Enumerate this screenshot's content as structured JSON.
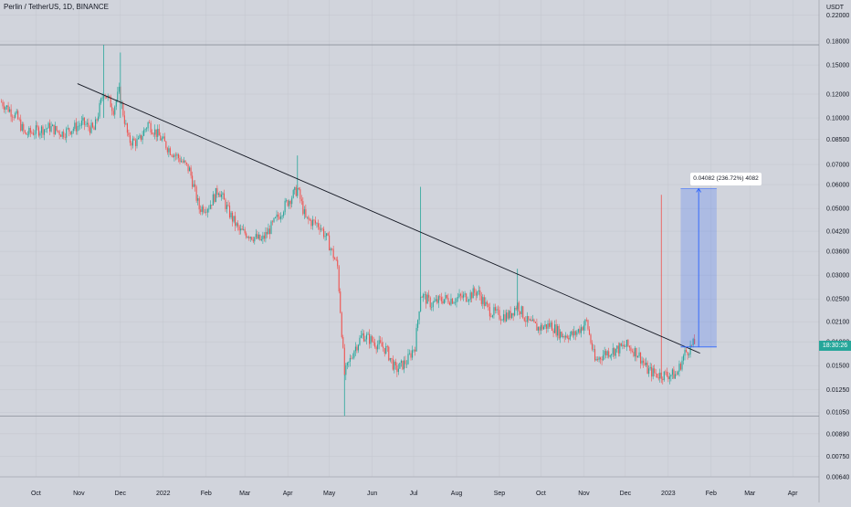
{
  "title": "Perlin / TetherUS, 1D, BINANCE",
  "currency": "USDT",
  "countdown": "18:30:26",
  "measure_label": "0.04082 (236.72%) 4082",
  "colors": {
    "up": "#26a69a",
    "down": "#ef5350",
    "trendline": "#131722",
    "measure_fill": "#2962ff",
    "measure_line": "#2962ff",
    "hline": "#8a8f9a"
  },
  "chart_data": {
    "type": "candlestick",
    "yscale": "log",
    "ylim": [
      0.0064,
      0.23
    ],
    "y_ticks": [
      "0.22000",
      "0.18000",
      "0.15000",
      "0.12000",
      "0.10000",
      "0.08500",
      "0.07000",
      "0.06000",
      "0.05000",
      "0.04200",
      "0.03600",
      "0.03000",
      "0.02500",
      "0.02100",
      "0.01800",
      "0.01500",
      "0.01250",
      "0.01050",
      "0.00890",
      "0.00750",
      "0.00640"
    ],
    "x_ticks": [
      "Oct",
      "Nov",
      "Dec",
      "2022",
      "Feb",
      "Mar",
      "Apr",
      "May",
      "Jun",
      "Jul",
      "Aug",
      "Sep",
      "Oct",
      "Nov",
      "Dec",
      "2023",
      "Feb",
      "Mar",
      "Apr"
    ],
    "xlim": [
      "2021-09-05",
      "2023-04-20"
    ],
    "trendline": {
      "from": [
        "2021-10-31",
        0.13
      ],
      "to": [
        "2023-01-24",
        0.0165
      ]
    },
    "horizontal_lines": [
      0.175,
      0.0102
    ],
    "measure": {
      "from_date": "2023-01-10",
      "to_date": "2023-02-05",
      "low": 0.0173,
      "high": 0.0582
    },
    "candles": [
      [
        "2021-09-06",
        0.113
      ],
      [
        "2021-09-17",
        0.101
      ],
      [
        "2021-09-23",
        0.088
      ],
      [
        "2021-10-02",
        0.091
      ],
      [
        "2021-10-11",
        0.093
      ],
      [
        "2021-10-20",
        0.089
      ],
      [
        "2021-10-29",
        0.093
      ],
      [
        "2021-11-04",
        0.096
      ],
      [
        "2021-11-12",
        0.091
      ],
      [
        "2021-11-19",
        0.123
      ],
      [
        "2021-11-26",
        0.107
      ],
      [
        "2021-11-30",
        0.122
      ],
      [
        "2021-12-07",
        0.084
      ],
      [
        "2021-12-14",
        0.083
      ],
      [
        "2021-12-21",
        0.096
      ],
      [
        "2021-12-28",
        0.088
      ],
      [
        "2022-01-05",
        0.079
      ],
      [
        "2022-01-13",
        0.073
      ],
      [
        "2022-01-20",
        0.067
      ],
      [
        "2022-01-27",
        0.05
      ],
      [
        "2022-02-03",
        0.051
      ],
      [
        "2022-02-10",
        0.058
      ],
      [
        "2022-02-17",
        0.049
      ],
      [
        "2022-02-25",
        0.042
      ],
      [
        "2022-03-04",
        0.041
      ],
      [
        "2022-03-13",
        0.039
      ],
      [
        "2022-03-21",
        0.044
      ],
      [
        "2022-03-31",
        0.052
      ],
      [
        "2022-04-08",
        0.058
      ],
      [
        "2022-04-14",
        0.046
      ],
      [
        "2022-04-24",
        0.044
      ],
      [
        "2022-04-30",
        0.039
      ],
      [
        "2022-05-07",
        0.032
      ],
      [
        "2022-05-12",
        0.014
      ],
      [
        "2022-05-19",
        0.017
      ],
      [
        "2022-05-25",
        0.019
      ],
      [
        "2022-06-02",
        0.018
      ],
      [
        "2022-06-11",
        0.017
      ],
      [
        "2022-06-18",
        0.0145
      ],
      [
        "2022-06-26",
        0.0155
      ],
      [
        "2022-07-02",
        0.0175
      ],
      [
        "2022-07-06",
        0.026
      ],
      [
        "2022-07-14",
        0.024
      ],
      [
        "2022-07-22",
        0.025
      ],
      [
        "2022-07-30",
        0.025
      ],
      [
        "2022-08-08",
        0.0255
      ],
      [
        "2022-08-16",
        0.0265
      ],
      [
        "2022-08-24",
        0.023
      ],
      [
        "2022-09-01",
        0.022
      ],
      [
        "2022-09-08",
        0.022
      ],
      [
        "2022-09-14",
        0.024
      ],
      [
        "2022-09-21",
        0.021
      ],
      [
        "2022-09-29",
        0.02
      ],
      [
        "2022-10-08",
        0.0205
      ],
      [
        "2022-10-16",
        0.019
      ],
      [
        "2022-10-25",
        0.019
      ],
      [
        "2022-11-03",
        0.021
      ],
      [
        "2022-11-09",
        0.0155
      ],
      [
        "2022-11-16",
        0.0165
      ],
      [
        "2022-11-25",
        0.017
      ],
      [
        "2022-12-02",
        0.0175
      ],
      [
        "2022-12-10",
        0.0165
      ],
      [
        "2022-12-17",
        0.0145
      ],
      [
        "2022-12-24",
        0.014
      ],
      [
        "2022-12-31",
        0.014
      ],
      [
        "2023-01-07",
        0.014
      ],
      [
        "2023-01-13",
        0.0165
      ],
      [
        "2023-01-20",
        0.0178
      ]
    ]
  }
}
